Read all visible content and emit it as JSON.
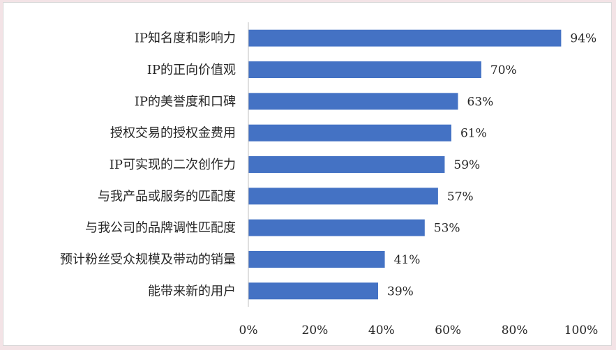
{
  "chart_data": {
    "type": "bar",
    "orientation": "horizontal",
    "categories": [
      "IP知名度和影响力",
      "IP的正向价值观",
      "IP的美誉度和口碑",
      "授权交易的授权金费用",
      "IP可实现的二次创作力",
      "与我产品或服务的匹配度",
      "与我公司的品牌调性匹配度",
      "预计粉丝受众规模及带动的销量",
      "能带来新的用户"
    ],
    "values": [
      94,
      70,
      63,
      61,
      59,
      57,
      53,
      41,
      39
    ],
    "data_labels": [
      "94%",
      "70%",
      "63%",
      "61%",
      "59%",
      "57%",
      "53%",
      "41%",
      "39%"
    ],
    "x_ticks": [
      "0%",
      "20%",
      "40%",
      "60%",
      "80%",
      "100%"
    ],
    "xlim": [
      0,
      100
    ],
    "grid": false,
    "legend": "none",
    "bar_color": "#4472c4",
    "axis_color": "#bfbfbf"
  }
}
